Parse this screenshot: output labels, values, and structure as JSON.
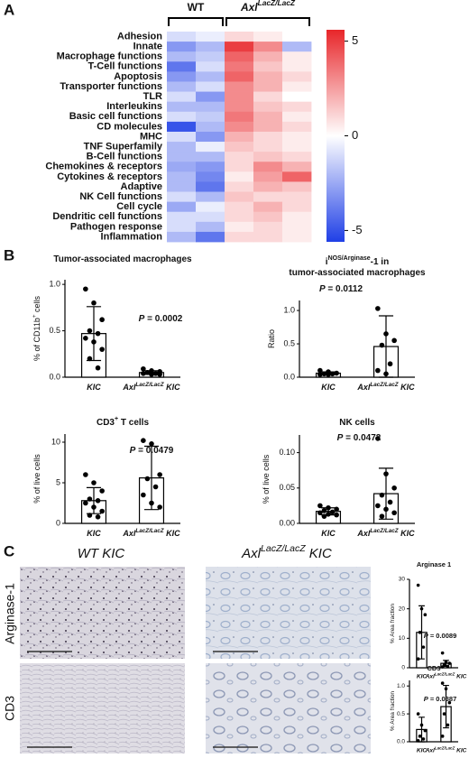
{
  "figure": {
    "panel_labels": [
      "A",
      "B",
      "C"
    ],
    "image_columns": [
      "WT KIC",
      "AxlLacZ/LacZ KIC"
    ],
    "image_rows": [
      "Arginase-1",
      "CD3"
    ]
  },
  "chart_data": [
    {
      "type": "heatmap",
      "columns": [
        "WT",
        "WT",
        "AxlLacZ/LacZ",
        "AxlLacZ/LacZ",
        "AxlLacZ/LacZ"
      ],
      "rows": [
        "Adhesion",
        "Innate",
        "Macrophage  functions",
        "T-Cell functions",
        "Apoptosis",
        "Transporter functions",
        "TLR",
        "Interleukins",
        "Basic cell functions",
        "CD molecules",
        "MHC",
        "TNF Superfamily",
        "B-Cell functions",
        "Chemokines & receptors",
        "Cytokines & receptors",
        "Adaptive",
        "NK Cell functions",
        "Cell cycle",
        "Dendritic cell functions",
        "Pathogen response",
        "Inflammation"
      ],
      "values": [
        [
          -1,
          -0.5,
          1,
          0.5,
          0
        ],
        [
          -3,
          -2,
          5,
          3,
          -2
        ],
        [
          -2,
          -1.5,
          4,
          2,
          0.5
        ],
        [
          -4,
          -1,
          3.5,
          1.5,
          0.5
        ],
        [
          -3,
          -2,
          4,
          2,
          1
        ],
        [
          -2,
          -1,
          3,
          2,
          0.5
        ],
        [
          -1,
          -3,
          3,
          1,
          0
        ],
        [
          -2,
          -2,
          3,
          1.5,
          1
        ],
        [
          -1,
          -1.5,
          3.5,
          2,
          0.5
        ],
        [
          -5,
          -2,
          3,
          2,
          1
        ],
        [
          -1,
          -3,
          2,
          1,
          0.5
        ],
        [
          -2,
          -0.5,
          1.5,
          1,
          0.5
        ],
        [
          -2,
          -2,
          1,
          1.5,
          1
        ],
        [
          -2.5,
          -3,
          1,
          3,
          2
        ],
        [
          -2,
          -3.5,
          0.5,
          2.5,
          4
        ],
        [
          -2,
          -4,
          1,
          2,
          1.5
        ],
        [
          -1,
          -2,
          1.5,
          1,
          1
        ],
        [
          -2.5,
          -0.5,
          1,
          2,
          1
        ],
        [
          -1,
          -1,
          1,
          1.5,
          0.5
        ],
        [
          -1,
          -2,
          0.5,
          1,
          0.5
        ],
        [
          -2,
          -4,
          1,
          1,
          0.5
        ]
      ],
      "clim": [
        -5.6,
        5.6
      ],
      "cticks": [
        5,
        0,
        -5
      ],
      "colors": {
        "low": "#1f3fe6",
        "mid": "#ffffff",
        "high": "#e8262a"
      }
    },
    {
      "type": "bar",
      "title": "Tumor-associated macrophages",
      "ylabel": "% of CD11b+ cells",
      "categories": [
        "KIC",
        "AxlLacZ/LacZ KIC"
      ],
      "values": [
        0.47,
        0.05
      ],
      "errors": [
        0.29,
        0.02
      ],
      "points": [
        [
          0.95,
          0.8,
          0.62,
          0.5,
          0.47,
          0.42,
          0.38,
          0.3,
          0.2,
          0.1
        ],
        [
          0.09,
          0.07,
          0.06,
          0.05,
          0.04,
          0.04,
          0.03,
          0.03
        ]
      ],
      "annotation": "P = 0.0002",
      "ylim": [
        0,
        1.05
      ],
      "yticks": [
        {
          "value": 0,
          "label": "0.0"
        },
        {
          "value": 0.5,
          "label": "0.5"
        },
        {
          "value": 1,
          "label": "1.0"
        }
      ],
      "color": "#ffffff",
      "edge_color": "#000000"
    },
    {
      "type": "bar",
      "title": [
        "iNOS/Arginase-1 in",
        "tumor-associated macrophages"
      ],
      "ylabel": "Ratio",
      "categories": [
        "KIC",
        "AxlLacZ/LacZ KIC"
      ],
      "values": [
        0.06,
        0.46
      ],
      "errors": [
        0.02,
        0.46
      ],
      "points": [
        [
          0.1,
          0.08,
          0.06,
          0.05,
          0.05,
          0.04,
          0.04
        ],
        [
          1.03,
          0.65,
          0.55,
          0.48,
          0.2,
          0.1,
          0.05
        ]
      ],
      "annotation": "P = 0.0112",
      "ylim": [
        0,
        1.15
      ],
      "yticks": [
        {
          "value": 0,
          "label": "0.0"
        },
        {
          "value": 0.5,
          "label": "0.5"
        },
        {
          "value": 1,
          "label": "1.0"
        }
      ],
      "color": "#ffffff",
      "edge_color": "#000000"
    },
    {
      "type": "bar",
      "title": "CD3+ T cells",
      "ylabel": "% of live cells",
      "categories": [
        "KIC",
        "AxlLacZ/LacZ KIC"
      ],
      "values": [
        2.8,
        5.6
      ],
      "errors": [
        1.6,
        3.9
      ],
      "points": [
        [
          6,
          5,
          4,
          3,
          2.8,
          2.5,
          2,
          1.5,
          1,
          0.8
        ],
        [
          10.2,
          9.8,
          6,
          5.5,
          4.5,
          3.5,
          2.5,
          2
        ]
      ],
      "annotation": "P = 0.0479",
      "ylim": [
        0,
        11
      ],
      "yticks": [
        0,
        5,
        10
      ],
      "color": "#ffffff",
      "edge_color": "#000000"
    },
    {
      "type": "bar",
      "title": "NK cells",
      "ylabel": "% of live cells",
      "categories": [
        "KIC",
        "AxlLacZ/LacZ KIC"
      ],
      "values": [
        0.017,
        0.042
      ],
      "errors": [
        0.005,
        0.036
      ],
      "points": [
        [
          0.025,
          0.022,
          0.02,
          0.018,
          0.016,
          0.015,
          0.013,
          0.012,
          0.01
        ],
        [
          0.12,
          0.07,
          0.05,
          0.04,
          0.03,
          0.025,
          0.02,
          0.015,
          0.01
        ]
      ],
      "annotation": "P = 0.0472",
      "ylim": [
        0,
        0.125
      ],
      "yticks": [
        {
          "value": 0,
          "label": "0.00"
        },
        {
          "value": 0.05,
          "label": "0.05"
        },
        {
          "value": 0.1,
          "label": "0.10"
        }
      ],
      "color": "#ffffff",
      "edge_color": "#000000"
    },
    {
      "type": "bar",
      "title": "Arginase 1",
      "ylabel": "% Area fraction",
      "categories": [
        "KIC",
        "AxlLacZ/LacZ KIC"
      ],
      "values": [
        12,
        1.5
      ],
      "errors": [
        9,
        1
      ],
      "points": [
        [
          28,
          20,
          18,
          12,
          7,
          3
        ],
        [
          5,
          2,
          1.5,
          1,
          0.5,
          0.3
        ]
      ],
      "annotation": "P = 0.0089",
      "ylim": [
        0,
        30
      ],
      "yticks": [
        0,
        10,
        20,
        30
      ],
      "color": "#ffffff",
      "edge_color": "#000000"
    },
    {
      "type": "bar",
      "title": "CD3",
      "ylabel": "% Area fraction",
      "categories": [
        "KIC",
        "AxlLacZ/LacZ KIC"
      ],
      "values": [
        0.22,
        0.63
      ],
      "errors": [
        0.22,
        0.38
      ],
      "points": [
        [
          0.5,
          0.3,
          0.2,
          0.1,
          0.05,
          0.02
        ],
        [
          1.05,
          0.95,
          0.7,
          0.5,
          0.3,
          0.1
        ]
      ],
      "annotation": "P = 0.0387",
      "ylim": [
        0,
        1.1
      ],
      "yticks": [
        {
          "value": 0,
          "label": "0.0"
        },
        {
          "value": 0.5,
          "label": "0.5"
        },
        {
          "value": 1,
          "label": "1.0"
        }
      ],
      "color": "#ffffff",
      "edge_color": "#000000"
    }
  ]
}
